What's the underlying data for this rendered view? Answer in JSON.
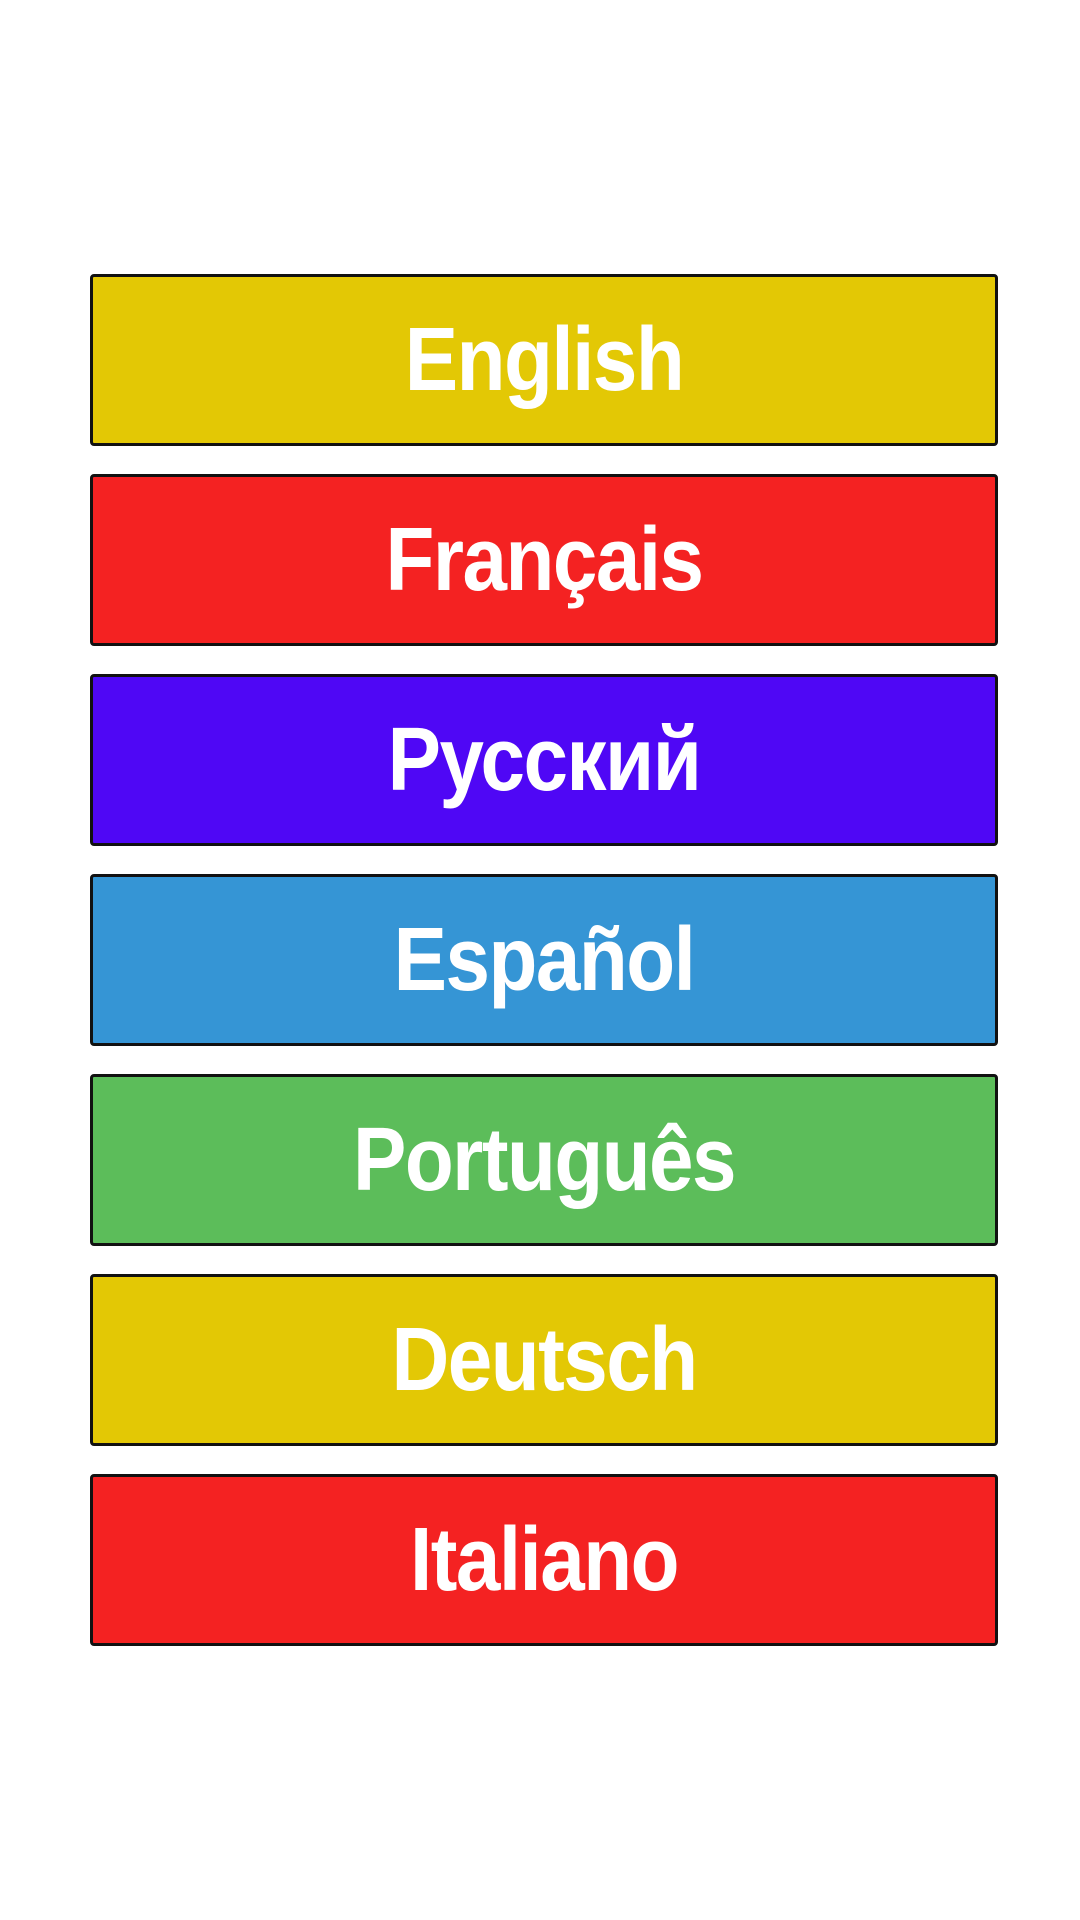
{
  "languages": [
    {
      "label": "English",
      "color": "#e3c805"
    },
    {
      "label": "Français",
      "color": "#f42222"
    },
    {
      "label": "Русский",
      "color": "#4f07f5"
    },
    {
      "label": "Español",
      "color": "#3595d5"
    },
    {
      "label": "Português",
      "color": "#5cbd5a"
    },
    {
      "label": "Deutsch",
      "color": "#e3c805"
    },
    {
      "label": "Italiano",
      "color": "#f42222"
    }
  ]
}
